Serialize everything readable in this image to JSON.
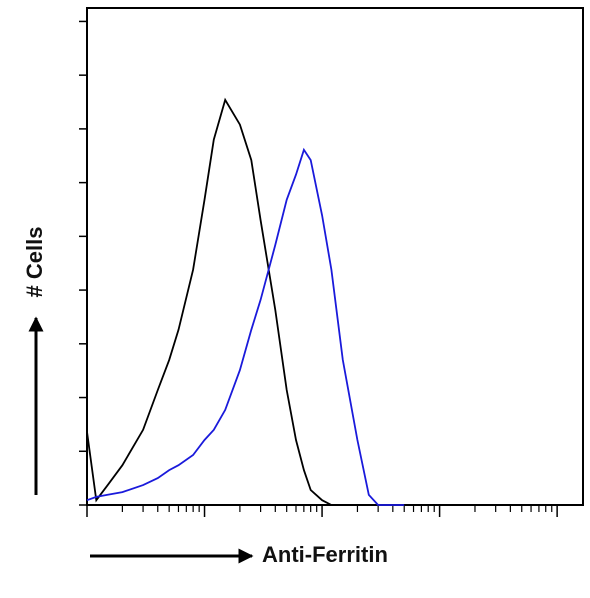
{
  "chart_data": {
    "type": "line",
    "x_label": "Anti-Ferritin",
    "y_label": "# Cells",
    "x": [
      1,
      1.2,
      1.5,
      2,
      3,
      4,
      5,
      6,
      8,
      10,
      12,
      15,
      20,
      25,
      30,
      40,
      50,
      60,
      70,
      80,
      100,
      120,
      150,
      200,
      250,
      300,
      400,
      500
    ],
    "series": [
      {
        "color": "#000000",
        "values": [
          13.6,
          0.9,
          3.7,
          7.4,
          14,
          21.4,
          27,
          32.6,
          43.8,
          56.8,
          68,
          75.4,
          70.8,
          64.2,
          53,
          36.3,
          21.4,
          12.1,
          6.5,
          2.8,
          0.9,
          0,
          0,
          0,
          0,
          0,
          0,
          0
        ]
      },
      {
        "color": "#1a1adb",
        "values": [
          0.9,
          1.5,
          1.9,
          2.4,
          3.7,
          5,
          6.5,
          7.4,
          9.3,
          12.1,
          14,
          17.7,
          25.1,
          32.6,
          38.2,
          48.4,
          56.8,
          61.5,
          66.1,
          64.2,
          53.9,
          43.8,
          27,
          12.1,
          1.9,
          0,
          0,
          0
        ]
      }
    ],
    "x_log": true,
    "xlim": [
      1,
      16600
    ],
    "xticks": [
      1,
      10,
      100,
      1000,
      10000
    ],
    "ylim": [
      0,
      92.5
    ],
    "yticks": [
      0,
      10,
      20,
      30,
      40,
      50,
      60,
      70,
      80,
      90
    ]
  }
}
